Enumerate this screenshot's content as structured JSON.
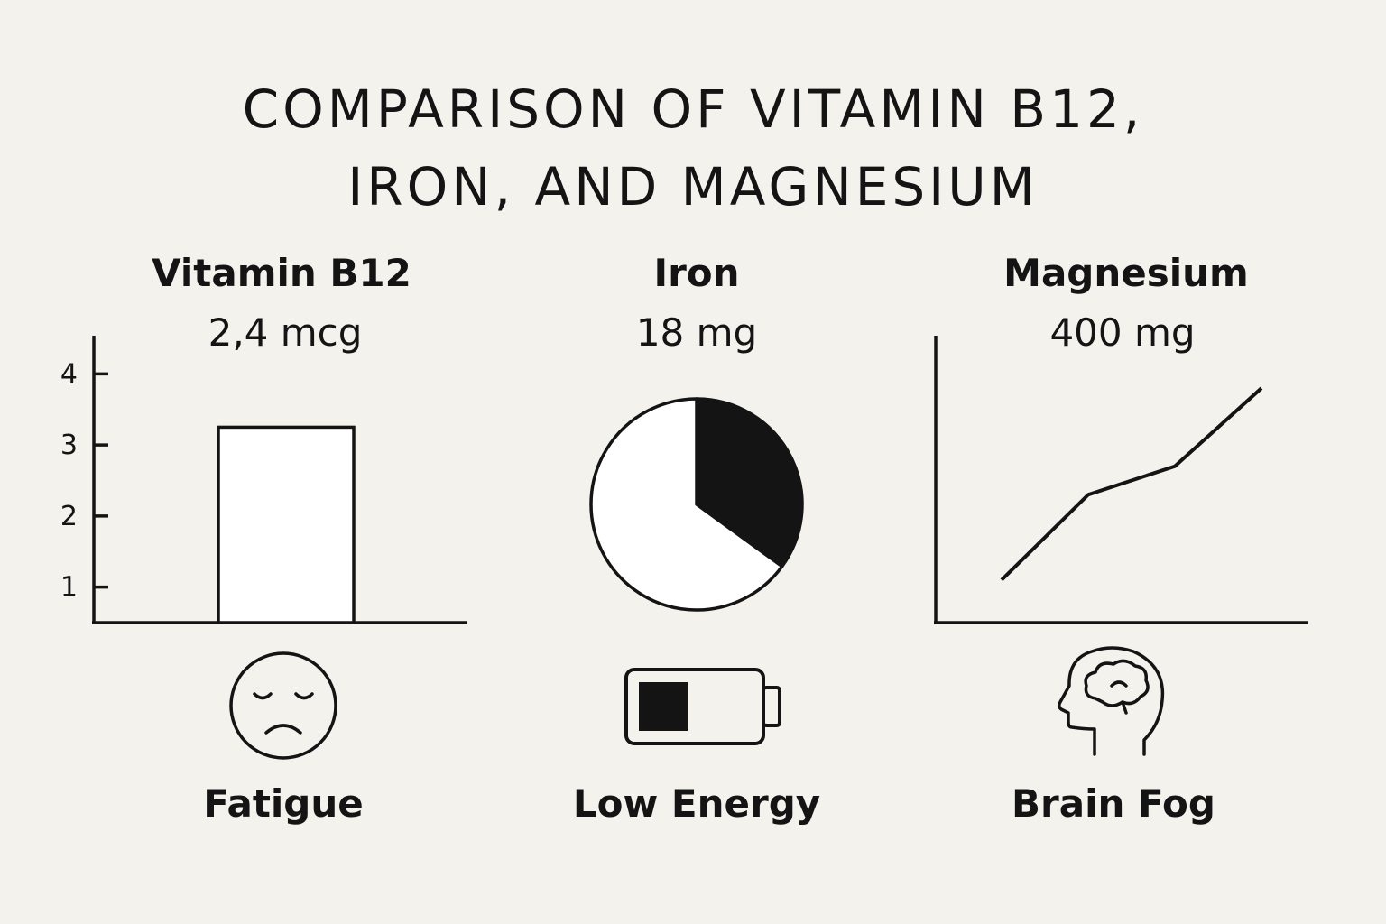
{
  "title": {
    "line1": "COMPARISON OF VITAMIN B12,",
    "line2": "IRON, AND MAGNESIUM"
  },
  "panels": [
    {
      "name": "Vitamin B12",
      "amount": "2,4 mcg",
      "symptom": "Fatigue",
      "symptom_icon": "sad-face-icon"
    },
    {
      "name": "Iron",
      "amount": "18 mg",
      "symptom": "Low Energy",
      "symptom_icon": "low-battery-icon"
    },
    {
      "name": "Magnesium",
      "amount": "400 mg",
      "symptom": "Brain Fog",
      "symptom_icon": "head-brain-icon"
    }
  ],
  "chart_data": [
    {
      "type": "bar",
      "categories": [
        ""
      ],
      "values": [
        3.25
      ],
      "yticks": [
        1,
        2,
        3,
        4
      ],
      "ylim": [
        0.5,
        4.5
      ],
      "grid": false
    },
    {
      "type": "pie",
      "values": [
        0.35,
        0.65
      ],
      "colors": [
        "#141414",
        "#ffffff"
      ]
    },
    {
      "type": "line",
      "x": [
        1,
        2,
        3,
        4
      ],
      "values": [
        1.1,
        2.3,
        2.7,
        3.8
      ],
      "ylim": [
        0.5,
        4.5
      ],
      "grid": false
    }
  ],
  "colors": {
    "background": "#f4f2ed",
    "ink": "#141414"
  }
}
